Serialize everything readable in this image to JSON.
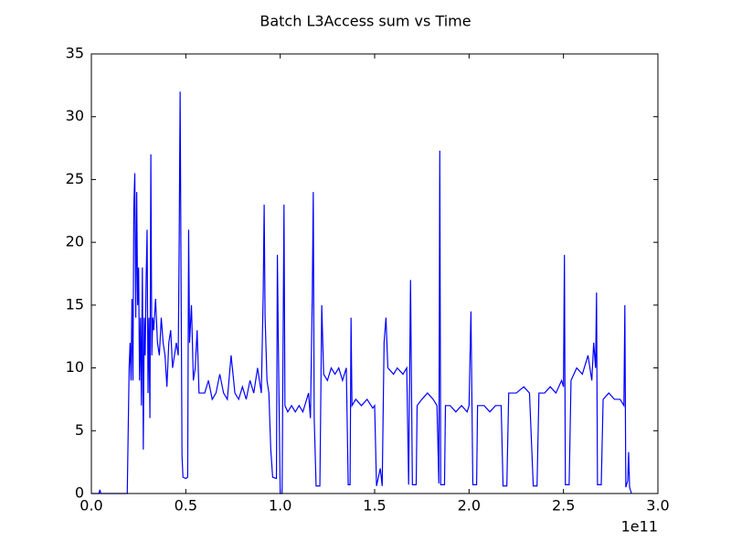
{
  "chart_data": {
    "type": "line",
    "title": "Batch L3Access sum vs Time",
    "x_offset_label": "1e11",
    "x": [
      0.0,
      0.04,
      0.045,
      0.05,
      0.19,
      0.2,
      0.205,
      0.21,
      0.215,
      0.22,
      0.225,
      0.23,
      0.235,
      0.24,
      0.245,
      0.25,
      0.255,
      0.26,
      0.265,
      0.27,
      0.275,
      0.28,
      0.285,
      0.29,
      0.295,
      0.3,
      0.305,
      0.31,
      0.315,
      0.32,
      0.325,
      0.33,
      0.34,
      0.35,
      0.36,
      0.37,
      0.38,
      0.39,
      0.4,
      0.41,
      0.42,
      0.43,
      0.44,
      0.45,
      0.46,
      0.465,
      0.47,
      0.475,
      0.48,
      0.485,
      0.5,
      0.51,
      0.515,
      0.52,
      0.53,
      0.54,
      0.55,
      0.56,
      0.57,
      0.6,
      0.62,
      0.64,
      0.66,
      0.68,
      0.7,
      0.72,
      0.74,
      0.76,
      0.78,
      0.8,
      0.82,
      0.84,
      0.86,
      0.88,
      0.9,
      0.91,
      0.915,
      0.92,
      0.93,
      0.94,
      0.95,
      0.96,
      0.98,
      0.985,
      0.99,
      1.0,
      1.01,
      1.02,
      1.025,
      1.04,
      1.06,
      1.08,
      1.1,
      1.12,
      1.15,
      1.16,
      1.17,
      1.175,
      1.18,
      1.19,
      1.21,
      1.22,
      1.23,
      1.25,
      1.27,
      1.29,
      1.31,
      1.33,
      1.35,
      1.36,
      1.37,
      1.375,
      1.38,
      1.4,
      1.43,
      1.46,
      1.49,
      1.5,
      1.51,
      1.53,
      1.54,
      1.55,
      1.56,
      1.57,
      1.6,
      1.62,
      1.65,
      1.67,
      1.68,
      1.69,
      1.7,
      1.72,
      1.725,
      1.75,
      1.78,
      1.81,
      1.83,
      1.84,
      1.845,
      1.85,
      1.87,
      1.875,
      1.9,
      1.93,
      1.96,
      1.99,
      2.0,
      2.01,
      2.02,
      2.04,
      2.045,
      2.08,
      2.11,
      2.14,
      2.17,
      2.18,
      2.2,
      2.21,
      2.25,
      2.29,
      2.32,
      2.34,
      2.36,
      2.37,
      2.4,
      2.43,
      2.46,
      2.49,
      2.5,
      2.505,
      2.51,
      2.53,
      2.54,
      2.57,
      2.6,
      2.63,
      2.65,
      2.66,
      2.67,
      2.675,
      2.68,
      2.7,
      2.71,
      2.74,
      2.77,
      2.8,
      2.82,
      2.825,
      2.83,
      2.84,
      2.845,
      2.85,
      2.86
    ],
    "series": [
      {
        "color": "#0000ff",
        "values": [
          0,
          0,
          0.3,
          0,
          0,
          10,
          12,
          9,
          15.5,
          9,
          23,
          25.5,
          14,
          24,
          15,
          18,
          9,
          14,
          7,
          18,
          3.5,
          14,
          11,
          17,
          21,
          8,
          14,
          6,
          27,
          11,
          14,
          13,
          15.5,
          12,
          11,
          14,
          12,
          11,
          8.5,
          12,
          13,
          10,
          11,
          12,
          11,
          20,
          32,
          17,
          3,
          1.3,
          1.2,
          1.3,
          21,
          12,
          15,
          9,
          10,
          13,
          8,
          8,
          9,
          7.5,
          8,
          9.5,
          8,
          7.5,
          11,
          8,
          7.5,
          8.5,
          7.5,
          9,
          8,
          10,
          8,
          16,
          23,
          14,
          9,
          8,
          3.5,
          1.3,
          1.2,
          19,
          12,
          0,
          0,
          23,
          7,
          6.5,
          7,
          6.5,
          7,
          6.5,
          8,
          6,
          16,
          24,
          6,
          0.6,
          0.6,
          15,
          9.5,
          9,
          10,
          9.5,
          10,
          9,
          10,
          0.7,
          0.7,
          14,
          7,
          7.5,
          7,
          7.5,
          6.8,
          7,
          0.6,
          2,
          0.6,
          12,
          14,
          10,
          9.5,
          10,
          9.5,
          10,
          0.7,
          17,
          0.7,
          0.7,
          7,
          7.5,
          8,
          7.5,
          7,
          0.8,
          27.3,
          0.7,
          0.7,
          7,
          7,
          6.5,
          7,
          6.5,
          7,
          14.5,
          0.7,
          0.7,
          7,
          7,
          6.5,
          7,
          7,
          0.6,
          0.6,
          8,
          8,
          8.5,
          8,
          0.6,
          0.6,
          8,
          8,
          8.5,
          8,
          9,
          8.5,
          19,
          0.7,
          0.7,
          9,
          10,
          9.5,
          11,
          9,
          12,
          10,
          16,
          0.7,
          0.7,
          7.5,
          8,
          7.5,
          7.5,
          7,
          15,
          0.5,
          1,
          3.3,
          0.5,
          0
        ]
      }
    ],
    "xlim": [
      0,
      3.0
    ],
    "xticks": [
      {
        "value": 0,
        "label": "0.0"
      },
      {
        "value": 0.5,
        "label": "0.5"
      },
      {
        "value": 1,
        "label": "1.0"
      },
      {
        "value": 1.5,
        "label": "1.5"
      },
      {
        "value": 2,
        "label": "2.0"
      },
      {
        "value": 2.5,
        "label": "2.5"
      },
      {
        "value": 3,
        "label": "3.0"
      }
    ],
    "ylim": [
      0,
      35
    ],
    "yticks": [
      0,
      5,
      10,
      15,
      20,
      25,
      30,
      35
    ]
  }
}
